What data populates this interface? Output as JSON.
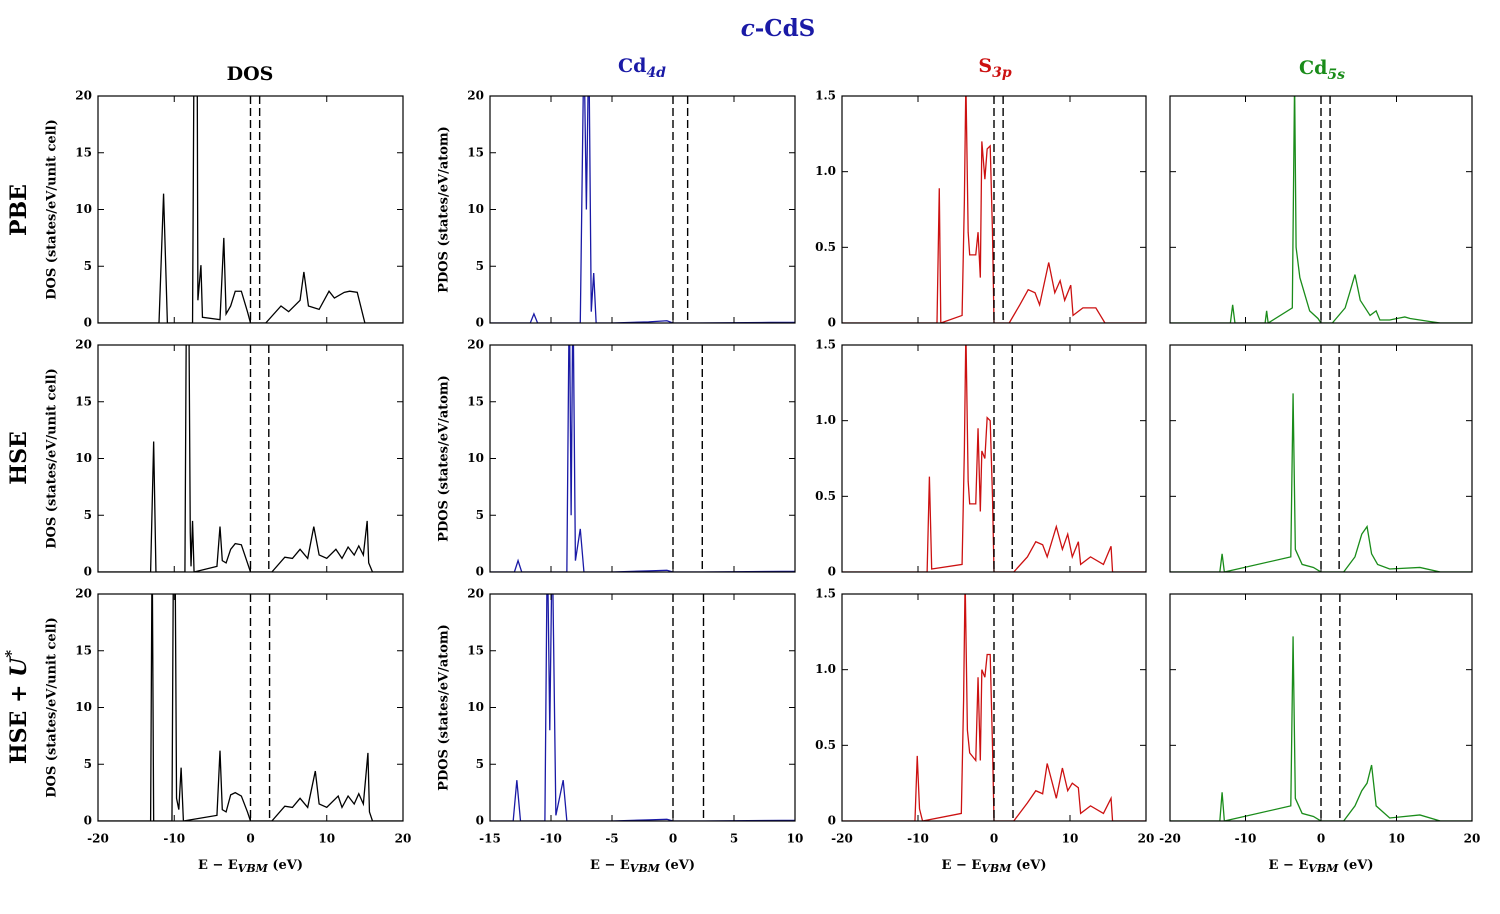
{
  "title": {
    "italic": "c",
    "rest": "-CdS"
  },
  "column_titles": [
    {
      "main": "DOS"
    },
    {
      "main": "Cd",
      "sub": "4d"
    },
    {
      "main": "S",
      "sub": "3p"
    },
    {
      "main": "Cd",
      "sub": "5s"
    }
  ],
  "row_labels": [
    {
      "main": "PBE"
    },
    {
      "main": "HSE"
    },
    {
      "main": "HSE + ",
      "italic": "U",
      "sup": "*"
    }
  ],
  "chart_data": [
    {
      "type": "line",
      "color": "#000000",
      "xlim": [
        -20,
        20
      ],
      "xticks": [
        -20,
        -10,
        0,
        10,
        20
      ],
      "xtick_labels": false,
      "ylim": [
        0,
        20
      ],
      "yticks": [
        0,
        5,
        10,
        15,
        20
      ],
      "ytick_labels": true,
      "ylabel": "DOS (states/eV/unit cell)",
      "vlines": [
        0,
        1.2
      ],
      "x": [
        -20,
        -12,
        -11.4,
        -10.9,
        -7.6,
        -7.4,
        -7.0,
        -6.9,
        -6.5,
        -6.3,
        -4,
        -3.5,
        -3.2,
        -2.6,
        -2,
        -1.2,
        -0.4,
        0,
        2,
        4,
        5,
        6.5,
        7,
        7.6,
        9,
        10.3,
        11,
        12.3,
        13,
        14,
        15,
        20
      ],
      "values": [
        0,
        0,
        11.4,
        0,
        0,
        25,
        25,
        2,
        5.1,
        0.5,
        0.3,
        7.5,
        0.8,
        1.5,
        2.8,
        2.8,
        1,
        0,
        0,
        1.5,
        1,
        2,
        4.5,
        1.5,
        1.2,
        2.8,
        2.2,
        2.7,
        2.8,
        2.7,
        0,
        0
      ]
    },
    {
      "type": "line",
      "color": "#1a1aa6",
      "xlim": [
        -15,
        10
      ],
      "xticks": [
        -15,
        -10,
        -5,
        0,
        5,
        10
      ],
      "xtick_labels": false,
      "ylim": [
        0,
        20
      ],
      "yticks": [
        0,
        5,
        10,
        15,
        20
      ],
      "ytick_labels": true,
      "ylabel": "PDOS (states/eV/atom)",
      "vlines": [
        0,
        1.2
      ],
      "x": [
        -15,
        -11.7,
        -11.4,
        -11.1,
        -7.6,
        -7.3,
        -7.1,
        -6.9,
        -6.7,
        -6.5,
        -6.3,
        -5,
        -2,
        -0.5,
        0,
        2,
        8,
        10
      ],
      "values": [
        0,
        0,
        0.8,
        0,
        0,
        25,
        10,
        25,
        1,
        4.4,
        0,
        0,
        0.1,
        0.2,
        0,
        0,
        0.05,
        0.05
      ]
    },
    {
      "type": "line",
      "color": "#cc1111",
      "xlim": [
        -20,
        20
      ],
      "xticks": [
        -20,
        -10,
        0,
        10,
        20
      ],
      "xtick_labels": false,
      "ylim": [
        0,
        1.5
      ],
      "yticks": [
        0,
        0.5,
        {
          "value": 1,
          "label": "1.0"
        },
        1.5
      ],
      "ytick_labels": true,
      "vlines": [
        0,
        1.2
      ],
      "x": [
        -20,
        -7.5,
        -7.2,
        -7.0,
        -4.2,
        -3.9,
        -3.7,
        -3.4,
        -3.2,
        -2.4,
        -2.1,
        -1.8,
        -1.6,
        -1.2,
        -0.9,
        -0.5,
        -0.2,
        0,
        2,
        3.4,
        4.5,
        5.4,
        6,
        7.2,
        8,
        8.7,
        9.3,
        10.1,
        10.4,
        11.7,
        13.4,
        14,
        14.6,
        20
      ],
      "values": [
        0,
        0,
        0.89,
        0,
        0.05,
        0.8,
        1.6,
        0.6,
        0.45,
        0.45,
        0.6,
        0.3,
        1.2,
        0.95,
        1.15,
        1.17,
        0.6,
        0,
        0,
        0.12,
        0.22,
        0.2,
        0.12,
        0.4,
        0.2,
        0.28,
        0.15,
        0.25,
        0.05,
        0.1,
        0.1,
        0.05,
        0,
        0
      ]
    },
    {
      "type": "line",
      "color": "#1a8c1a",
      "xlim": [
        -20,
        20
      ],
      "xticks": [
        -20,
        -10,
        0,
        10,
        20
      ],
      "xtick_labels": false,
      "ylim": [
        0,
        1.5
      ],
      "yticks": [
        0,
        0.5,
        1,
        1.5
      ],
      "ytick_labels": false,
      "vlines": [
        0,
        1.2
      ],
      "x": [
        -20,
        -12,
        -11.7,
        -11.4,
        -7.4,
        -7.2,
        -7.0,
        -3.8,
        -3.5,
        -3.3,
        -2.8,
        -1.5,
        -0.4,
        0,
        1.5,
        3.2,
        3.8,
        4.5,
        5.2,
        6.5,
        7.3,
        7.8,
        9.1,
        11.1,
        11.8,
        13.1,
        14.4,
        15.8,
        20
      ],
      "values": [
        0,
        0,
        0.12,
        0,
        0,
        0.08,
        0,
        0.1,
        1.6,
        0.5,
        0.3,
        0.08,
        0.03,
        0,
        0,
        0.1,
        0.2,
        0.32,
        0.15,
        0.05,
        0.08,
        0.02,
        0.02,
        0.04,
        0.03,
        0.02,
        0.01,
        0,
        0
      ]
    },
    {
      "type": "line",
      "color": "#000000",
      "xlim": [
        -20,
        20
      ],
      "xticks": [
        -20,
        -10,
        0,
        10,
        20
      ],
      "xtick_labels": false,
      "ylim": [
        0,
        20
      ],
      "yticks": [
        0,
        5,
        10,
        15,
        20
      ],
      "ytick_labels": true,
      "ylabel": "DOS (states/eV/unit cell)",
      "vlines": [
        0,
        2.4
      ],
      "x": [
        -20,
        -13.1,
        -12.7,
        -12.4,
        -8.6,
        -8.4,
        -8.1,
        -7.9,
        -7.8,
        -7.6,
        -7.4,
        -4.4,
        -4,
        -3.7,
        -3.2,
        -2.6,
        -2,
        -1.2,
        -0.4,
        0,
        2.8,
        4.5,
        5.5,
        6.5,
        7.5,
        8.3,
        9,
        10,
        11.2,
        12,
        12.8,
        13.6,
        14.2,
        14.8,
        15.3,
        15.5,
        16,
        20
      ],
      "values": [
        0,
        0,
        11.5,
        0,
        0,
        25,
        25,
        3.5,
        0.5,
        4.5,
        0,
        0.5,
        4,
        1,
        0.8,
        2,
        2.5,
        2.4,
        0.8,
        0,
        0,
        1.3,
        1.2,
        2,
        1.2,
        4,
        1.5,
        1.2,
        2,
        1.2,
        2.2,
        1.5,
        2.3,
        1.5,
        4.5,
        0.8,
        0,
        0
      ]
    },
    {
      "type": "line",
      "color": "#1a1aa6",
      "xlim": [
        -15,
        10
      ],
      "xticks": [
        -15,
        -10,
        -5,
        0,
        5,
        10
      ],
      "xtick_labels": false,
      "ylim": [
        0,
        20
      ],
      "yticks": [
        0,
        5,
        10,
        15,
        20
      ],
      "ytick_labels": true,
      "ylabel": "PDOS (states/eV/atom)",
      "vlines": [
        0,
        2.4
      ],
      "x": [
        -15,
        -13,
        -12.7,
        -12.4,
        -8.7,
        -8.5,
        -8.35,
        -8.2,
        -8.0,
        -7.6,
        -7.3,
        -5,
        -2,
        -0.5,
        0,
        2.4,
        9,
        10
      ],
      "values": [
        0,
        0,
        1,
        0,
        0,
        25,
        5,
        25,
        1,
        3.8,
        0,
        0,
        0.1,
        0.15,
        0,
        0,
        0.05,
        0.05
      ]
    },
    {
      "type": "line",
      "color": "#cc1111",
      "xlim": [
        -20,
        20
      ],
      "xticks": [
        -20,
        -10,
        0,
        10,
        20
      ],
      "xtick_labels": false,
      "ylim": [
        0,
        1.5
      ],
      "yticks": [
        0,
        0.5,
        {
          "value": 1,
          "label": "1.0"
        },
        1.5
      ],
      "ytick_labels": true,
      "vlines": [
        0,
        2.4
      ],
      "x": [
        -20,
        -8.8,
        -8.5,
        -8.2,
        -4.2,
        -3.9,
        -3.7,
        -3.4,
        -3.2,
        -2.4,
        -2.1,
        -1.8,
        -1.6,
        -1.2,
        -0.9,
        -0.5,
        -0.2,
        0,
        2.6,
        4.4,
        5.5,
        6.4,
        7,
        8.2,
        9,
        9.7,
        10.3,
        11.1,
        11.4,
        12.7,
        14.4,
        15.4,
        15.6,
        20
      ],
      "values": [
        0,
        0,
        0.63,
        0.02,
        0.05,
        0.8,
        1.6,
        0.6,
        0.45,
        0.45,
        0.95,
        0.4,
        0.8,
        0.75,
        1.02,
        1.0,
        0.5,
        0,
        0,
        0.1,
        0.2,
        0.18,
        0.1,
        0.3,
        0.15,
        0.25,
        0.1,
        0.2,
        0.05,
        0.1,
        0.05,
        0.17,
        0,
        0
      ]
    },
    {
      "type": "line",
      "color": "#1a8c1a",
      "xlim": [
        -20,
        20
      ],
      "xticks": [
        -20,
        -10,
        0,
        10,
        20
      ],
      "xtick_labels": false,
      "ylim": [
        0,
        1.5
      ],
      "yticks": [
        0,
        0.5,
        1,
        1.5
      ],
      "ytick_labels": false,
      "vlines": [
        0,
        2.4
      ],
      "x": [
        -20,
        -13.4,
        -13.1,
        -12.8,
        -4.0,
        -3.7,
        -3.4,
        -2.5,
        -1,
        0,
        3,
        4.5,
        5.4,
        6.1,
        6.7,
        7.5,
        9.1,
        13.1,
        15.8,
        20
      ],
      "values": [
        0,
        0,
        0.12,
        0,
        0.1,
        1.18,
        0.15,
        0.05,
        0.03,
        0,
        0,
        0.1,
        0.25,
        0.3,
        0.12,
        0.05,
        0.02,
        0.03,
        0,
        0
      ]
    },
    {
      "type": "line",
      "color": "#000000",
      "xlim": [
        -20,
        20
      ],
      "xticks": [
        -20,
        -10,
        0,
        10,
        20
      ],
      "xtick_labels": true,
      "ylim": [
        0,
        20
      ],
      "yticks": [
        0,
        5,
        10,
        15,
        20
      ],
      "ytick_labels": true,
      "ylabel": "DOS (states/eV/unit cell)",
      "xlabel": {
        "main": "E − E",
        "sub": "VBM",
        "unit": " (eV)"
      },
      "vlines": [
        0,
        2.5
      ],
      "x": [
        -20,
        -13.1,
        -12.9,
        -12.7,
        -10.3,
        -10.1,
        -9.9,
        -9.7,
        -9.4,
        -9.1,
        -8.8,
        -4.4,
        -4,
        -3.7,
        -3.2,
        -2.6,
        -2,
        -1.2,
        -0.4,
        0,
        2.8,
        4.5,
        5.5,
        6.5,
        7.5,
        8.5,
        9,
        10,
        11.5,
        12,
        12.8,
        13.6,
        14.2,
        14.8,
        15.4,
        15.6,
        16,
        20
      ],
      "values": [
        0,
        0,
        25,
        0,
        0,
        25,
        25,
        2,
        1,
        4.7,
        0,
        0.5,
        6.2,
        1,
        0.8,
        2.3,
        2.5,
        2.2,
        0.8,
        0,
        0,
        1.3,
        1.2,
        2,
        1.2,
        4.4,
        1.5,
        1.2,
        2.2,
        1.2,
        2.2,
        1.5,
        2.4,
        1.5,
        6,
        0.8,
        0,
        0
      ]
    },
    {
      "type": "line",
      "color": "#1a1aa6",
      "xlim": [
        -15,
        10
      ],
      "xticks": [
        -15,
        -10,
        -5,
        0,
        5,
        10
      ],
      "xtick_labels": true,
      "ylim": [
        0,
        20
      ],
      "yticks": [
        0,
        5,
        10,
        15,
        20
      ],
      "ytick_labels": true,
      "ylabel": "PDOS (states/eV/atom)",
      "xlabel": {
        "main": "E − E",
        "sub": "VBM",
        "unit": " (eV)"
      },
      "vlines": [
        0,
        2.5
      ],
      "x": [
        -15,
        -13.1,
        -12.8,
        -12.5,
        -10.5,
        -10.3,
        -10.1,
        -9.9,
        -9.6,
        -9.0,
        -8.7,
        -5,
        -2,
        -0.5,
        0,
        2.5,
        9,
        10
      ],
      "values": [
        0,
        0,
        3.6,
        0,
        0,
        25,
        8,
        25,
        0.5,
        3.6,
        0,
        0,
        0.1,
        0.15,
        0,
        0,
        0.05,
        0.05
      ]
    },
    {
      "type": "line",
      "color": "#cc1111",
      "xlim": [
        -20,
        20
      ],
      "xticks": [
        -20,
        -10,
        0,
        10,
        20
      ],
      "xtick_labels": true,
      "ylim": [
        0,
        1.5
      ],
      "yticks": [
        0,
        0.5,
        {
          "value": 1,
          "label": "1.0"
        },
        1.5
      ],
      "ytick_labels": true,
      "xlabel": {
        "main": "E − E",
        "sub": "VBM",
        "unit": " (eV)"
      },
      "vlines": [
        0,
        2.5
      ],
      "x": [
        -20,
        -10.4,
        -10.1,
        -9.8,
        -9.4,
        -4.3,
        -4.0,
        -3.8,
        -3.5,
        -3.2,
        -2.4,
        -2.1,
        -1.8,
        -1.6,
        -1.2,
        -0.9,
        -0.5,
        -0.2,
        0,
        2.6,
        4.4,
        5.5,
        6.4,
        7,
        8.2,
        9,
        9.7,
        10.3,
        11.1,
        11.4,
        12.7,
        14.4,
        15.4,
        15.6,
        20
      ],
      "values": [
        0,
        0,
        0.43,
        0.08,
        0,
        0.05,
        0.8,
        1.6,
        0.6,
        0.45,
        0.4,
        0.95,
        0.4,
        1.0,
        0.95,
        1.1,
        1.1,
        0.5,
        0,
        0,
        0.12,
        0.2,
        0.18,
        0.38,
        0.15,
        0.35,
        0.2,
        0.25,
        0.22,
        0.05,
        0.1,
        0.05,
        0.15,
        0,
        0
      ]
    },
    {
      "type": "line",
      "color": "#1a8c1a",
      "xlim": [
        -20,
        20
      ],
      "xticks": [
        -20,
        -10,
        0,
        10,
        20
      ],
      "xtick_labels": true,
      "ylim": [
        0,
        1.5
      ],
      "yticks": [
        0,
        0.5,
        1,
        1.5
      ],
      "ytick_labels": false,
      "xlabel": {
        "main": "E − E",
        "sub": "VBM",
        "unit": " (eV)"
      },
      "vlines": [
        0,
        2.5
      ],
      "x": [
        -20,
        -13.4,
        -13.1,
        -12.8,
        -4.0,
        -3.7,
        -3.4,
        -2.5,
        -1,
        0,
        3,
        4.5,
        5.4,
        6.1,
        6.7,
        7.3,
        9.1,
        13.1,
        15.8,
        20
      ],
      "values": [
        0,
        0,
        0.19,
        0,
        0.1,
        1.22,
        0.15,
        0.05,
        0.03,
        0,
        0,
        0.1,
        0.2,
        0.25,
        0.37,
        0.1,
        0.02,
        0.04,
        0,
        0
      ]
    }
  ]
}
